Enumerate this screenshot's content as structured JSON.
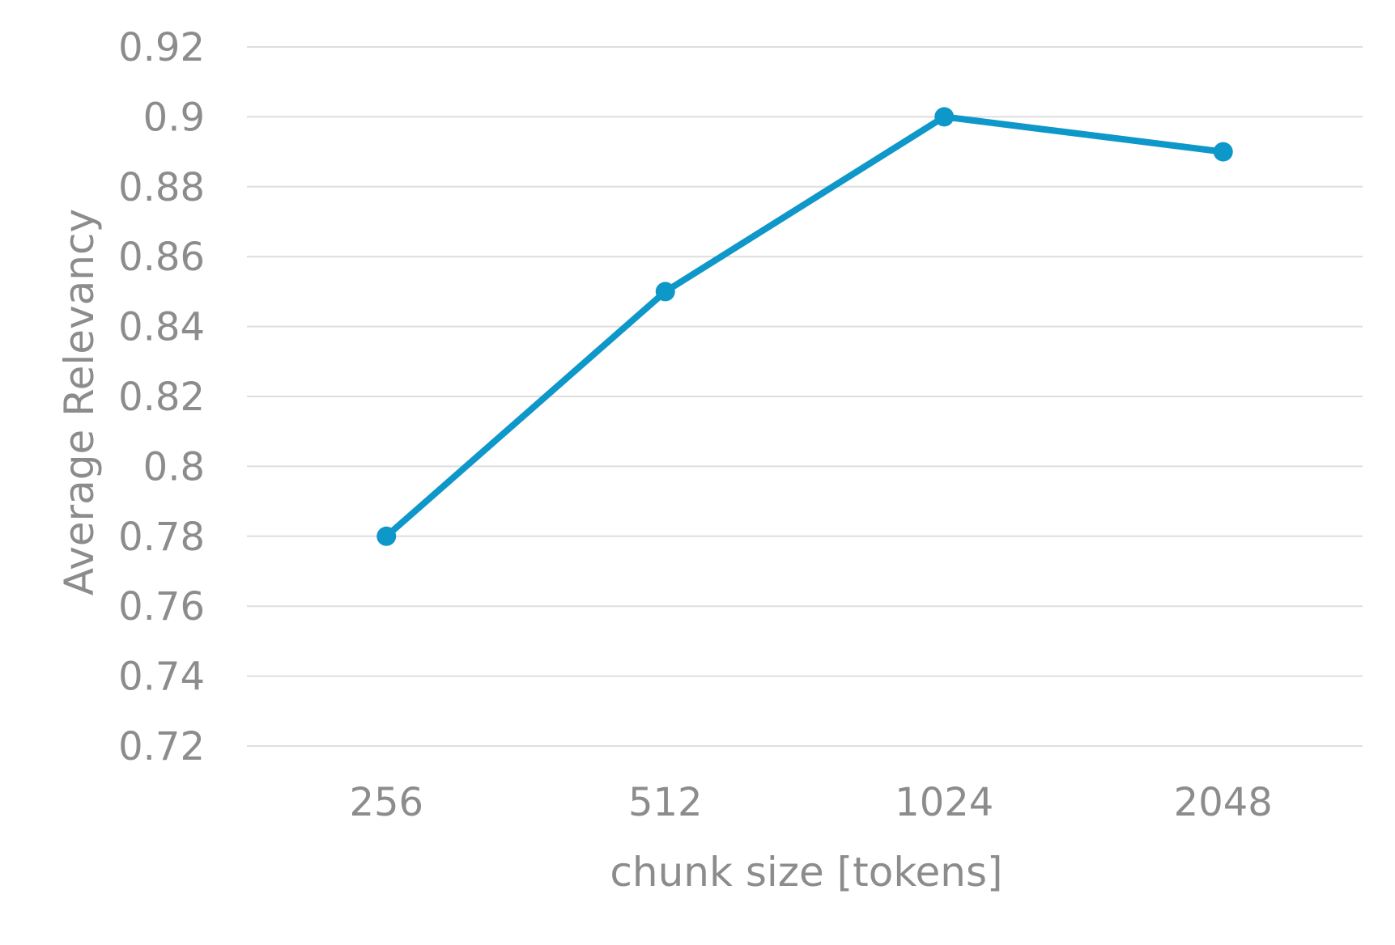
{
  "chart_data": {
    "type": "line",
    "title": "",
    "xlabel": "chunk size [tokens]",
    "ylabel": "Average Relevancy",
    "categories": [
      "256",
      "512",
      "1024",
      "2048"
    ],
    "series": [
      {
        "values": [
          0.78,
          0.85,
          0.9,
          0.89
        ],
        "color": "#0e97c9"
      }
    ],
    "ylim": [
      0.72,
      0.92
    ],
    "yticks": [
      "0.72",
      "0.74",
      "0.76",
      "0.78",
      "0.8",
      "0.82",
      "0.84",
      "0.86",
      "0.88",
      "0.9",
      "0.92"
    ],
    "grid": true,
    "legend": "none"
  }
}
